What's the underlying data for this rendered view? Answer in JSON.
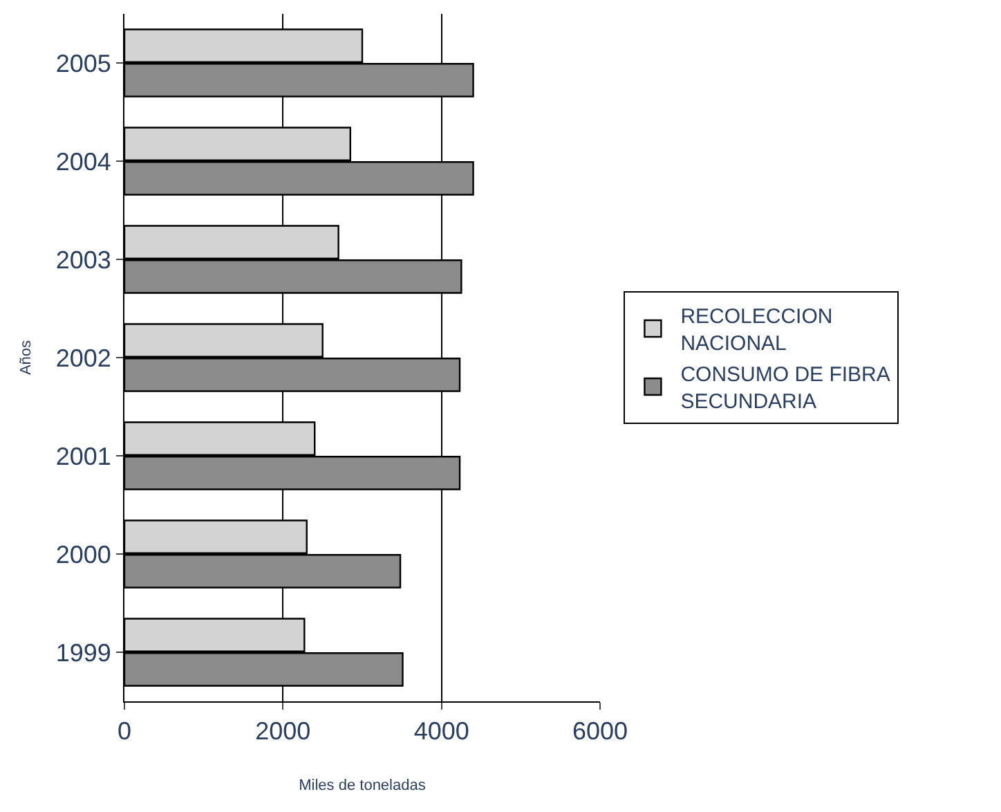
{
  "chart_data": {
    "type": "bar",
    "orientation": "horizontal",
    "categories": [
      "2005",
      "2004",
      "2003",
      "2002",
      "2001",
      "2000",
      "1999"
    ],
    "series": [
      {
        "name": "RECOLECCION NACIONAL",
        "color": "#d3d3d3",
        "values": [
          3000,
          2850,
          2700,
          2500,
          2400,
          2300,
          2270
        ]
      },
      {
        "name": "CONSUMO DE FIBRA SECUNDARIA",
        "color": "#8c8c8c",
        "values": [
          4400,
          4400,
          4250,
          4230,
          4230,
          3480,
          3510
        ]
      }
    ],
    "xlabel": "Miles de toneladas",
    "ylabel": "Años",
    "xlim": [
      0,
      6000
    ],
    "xticks": [
      0,
      2000,
      4000,
      6000
    ],
    "grid": "x",
    "legend": "right"
  }
}
